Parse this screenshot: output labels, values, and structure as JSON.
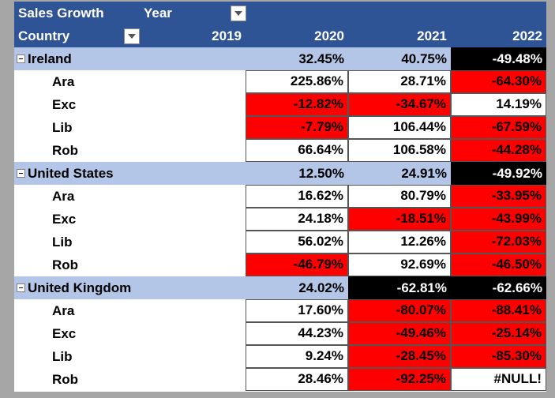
{
  "header": {
    "title": "Sales Growth",
    "column_field": "Year",
    "row_field": "Country",
    "years": [
      "2019",
      "2020",
      "2021",
      "2022"
    ]
  },
  "groups": [
    {
      "name": "Ireland",
      "totals": [
        "",
        "32.45%",
        "40.75%",
        "-49.48%"
      ],
      "total_styles": [
        "grp",
        "grp",
        "grp",
        "black"
      ],
      "rows": [
        {
          "name": "Ara",
          "values": [
            "",
            "225.86%",
            "28.71%",
            "-64.30%"
          ],
          "styles": [
            "",
            "white",
            "white",
            "red"
          ]
        },
        {
          "name": "Exc",
          "values": [
            "",
            "-12.82%",
            "-34.67%",
            "14.19%"
          ],
          "styles": [
            "",
            "red",
            "red",
            "white"
          ]
        },
        {
          "name": "Lib",
          "values": [
            "",
            "-7.79%",
            "106.44%",
            "-67.59%"
          ],
          "styles": [
            "",
            "red",
            "white",
            "red"
          ]
        },
        {
          "name": "Rob",
          "values": [
            "",
            "66.64%",
            "106.58%",
            "-44.28%"
          ],
          "styles": [
            "",
            "white",
            "white",
            "red"
          ]
        }
      ]
    },
    {
      "name": "United States",
      "totals": [
        "",
        "12.50%",
        "24.91%",
        "-49.92%"
      ],
      "total_styles": [
        "grp",
        "grp",
        "grp",
        "black"
      ],
      "rows": [
        {
          "name": "Ara",
          "values": [
            "",
            "16.62%",
            "80.79%",
            "-33.95%"
          ],
          "styles": [
            "",
            "white",
            "white",
            "red"
          ]
        },
        {
          "name": "Exc",
          "values": [
            "",
            "24.18%",
            "-18.51%",
            "-43.99%"
          ],
          "styles": [
            "",
            "white",
            "red",
            "red"
          ]
        },
        {
          "name": "Lib",
          "values": [
            "",
            "56.02%",
            "12.26%",
            "-72.03%"
          ],
          "styles": [
            "",
            "white",
            "white",
            "red"
          ]
        },
        {
          "name": "Rob",
          "values": [
            "",
            "-46.79%",
            "92.69%",
            "-46.50%"
          ],
          "styles": [
            "",
            "red",
            "white",
            "red"
          ]
        }
      ]
    },
    {
      "name": "United Kingdom",
      "totals": [
        "",
        "24.02%",
        "-62.81%",
        "-62.66%"
      ],
      "total_styles": [
        "grp",
        "grp",
        "black",
        "black"
      ],
      "rows": [
        {
          "name": "Ara",
          "values": [
            "",
            "17.60%",
            "-80.07%",
            "-88.41%"
          ],
          "styles": [
            "",
            "white",
            "red",
            "red"
          ]
        },
        {
          "name": "Exc",
          "values": [
            "",
            "44.23%",
            "-49.46%",
            "-25.14%"
          ],
          "styles": [
            "",
            "white",
            "red",
            "red"
          ]
        },
        {
          "name": "Lib",
          "values": [
            "",
            "9.24%",
            "-28.45%",
            "-85.30%"
          ],
          "styles": [
            "",
            "white",
            "red",
            "red"
          ]
        },
        {
          "name": "Rob",
          "values": [
            "",
            "28.46%",
            "-92.25%",
            "#NULL!"
          ],
          "styles": [
            "",
            "white",
            "red",
            "white"
          ]
        }
      ]
    }
  ],
  "colors": {
    "header_bg": "#2f5496",
    "group_bg": "#b4c6e7",
    "negative_fill": "#ff0000",
    "extreme_fill": "#000000"
  }
}
